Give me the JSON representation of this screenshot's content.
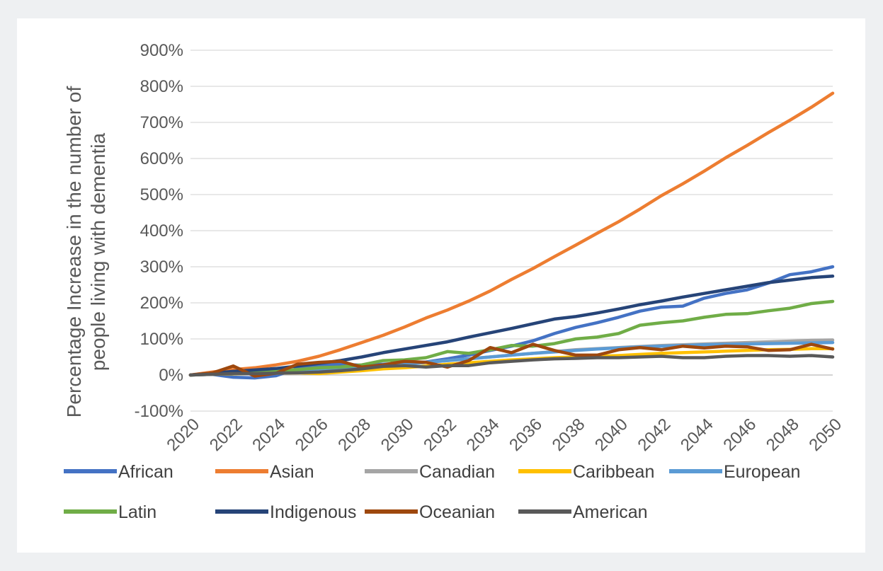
{
  "chart_data": {
    "type": "line",
    "title": "",
    "xlabel": "",
    "ylabel_line1": "Percentage Increase in the number of",
    "ylabel_line2": "people living with dementia",
    "ylim": [
      -100,
      900
    ],
    "y_ticks": [
      -100,
      0,
      100,
      200,
      300,
      400,
      500,
      600,
      700,
      800,
      900
    ],
    "y_tick_labels": [
      "-100%",
      "0%",
      "100%",
      "200%",
      "300%",
      "400%",
      "500%",
      "600%",
      "700%",
      "800%",
      "900%"
    ],
    "x": [
      2020,
      2021,
      2022,
      2023,
      2024,
      2025,
      2026,
      2027,
      2028,
      2029,
      2030,
      2031,
      2032,
      2033,
      2034,
      2035,
      2036,
      2037,
      2038,
      2039,
      2040,
      2041,
      2042,
      2043,
      2044,
      2045,
      2046,
      2047,
      2048,
      2049,
      2050
    ],
    "x_tick_labels": [
      "2020",
      "2022",
      "2024",
      "2026",
      "2028",
      "2030",
      "2032",
      "2034",
      "2036",
      "2038",
      "2040",
      "2042",
      "2044",
      "2046",
      "2048",
      "2050"
    ],
    "grid": "horizontal",
    "legend_position": "bottom",
    "series": [
      {
        "name": "African",
        "color": "#4472C4",
        "values": [
          0,
          2,
          -6,
          -8,
          -2,
          18,
          28,
          30,
          27,
          30,
          33,
          36,
          45,
          55,
          68,
          80,
          95,
          115,
          132,
          145,
          160,
          177,
          188,
          191,
          213,
          226,
          236,
          255,
          278,
          286,
          300
        ]
      },
      {
        "name": "Asian",
        "color": "#ED7D31",
        "values": [
          0,
          8,
          15,
          20,
          28,
          38,
          52,
          70,
          90,
          110,
          133,
          158,
          180,
          205,
          233,
          265,
          295,
          328,
          360,
          393,
          425,
          460,
          497,
          530,
          565,
          602,
          636,
          672,
          706,
          742,
          781
        ]
      },
      {
        "name": "Canadian",
        "color": "#A5A5A5",
        "values": [
          0,
          3,
          5,
          7,
          9,
          12,
          15,
          18,
          22,
          26,
          30,
          35,
          40,
          45,
          50,
          55,
          60,
          65,
          70,
          73,
          76,
          79,
          82,
          84,
          86,
          88,
          90,
          92,
          94,
          96,
          97
        ]
      },
      {
        "name": "Caribbean",
        "color": "#FFC000",
        "values": [
          0,
          2,
          3,
          5,
          5,
          6,
          4,
          8,
          12,
          17,
          20,
          25,
          30,
          34,
          38,
          42,
          45,
          48,
          50,
          52,
          54,
          57,
          60,
          62,
          64,
          66,
          68,
          70,
          71,
          73,
          73
        ]
      },
      {
        "name": "European",
        "color": "#5B9BD5",
        "values": [
          0,
          2,
          4,
          6,
          8,
          11,
          14,
          18,
          22,
          26,
          30,
          35,
          40,
          45,
          50,
          55,
          60,
          64,
          68,
          72,
          75,
          78,
          80,
          82,
          84,
          85,
          86,
          87,
          88,
          89,
          90
        ]
      },
      {
        "name": "Latin",
        "color": "#70AD47",
        "values": [
          0,
          3,
          5,
          8,
          11,
          15,
          20,
          22,
          28,
          40,
          42,
          48,
          65,
          60,
          70,
          82,
          80,
          87,
          100,
          105,
          115,
          138,
          145,
          150,
          160,
          168,
          170,
          178,
          185,
          198,
          204
        ]
      },
      {
        "name": "Indigenous",
        "color": "#264478",
        "values": [
          0,
          5,
          10,
          14,
          18,
          25,
          32,
          40,
          50,
          62,
          72,
          82,
          92,
          105,
          117,
          129,
          142,
          155,
          162,
          172,
          183,
          195,
          205,
          216,
          226,
          236,
          246,
          256,
          263,
          270,
          274
        ]
      },
      {
        "name": "Oceanian",
        "color": "#9E480E",
        "values": [
          0,
          5,
          25,
          -3,
          5,
          30,
          35,
          38,
          22,
          28,
          38,
          35,
          22,
          40,
          76,
          62,
          85,
          68,
          55,
          55,
          70,
          76,
          70,
          80,
          75,
          80,
          78,
          68,
          70,
          85,
          72
        ]
      },
      {
        "name": "American",
        "color": "#595959",
        "values": [
          0,
          2,
          4,
          4,
          5,
          6,
          8,
          12,
          17,
          24,
          26,
          22,
          26,
          26,
          34,
          38,
          42,
          45,
          46,
          48,
          48,
          50,
          52,
          48,
          48,
          52,
          54,
          54,
          52,
          54,
          50
        ]
      }
    ]
  }
}
